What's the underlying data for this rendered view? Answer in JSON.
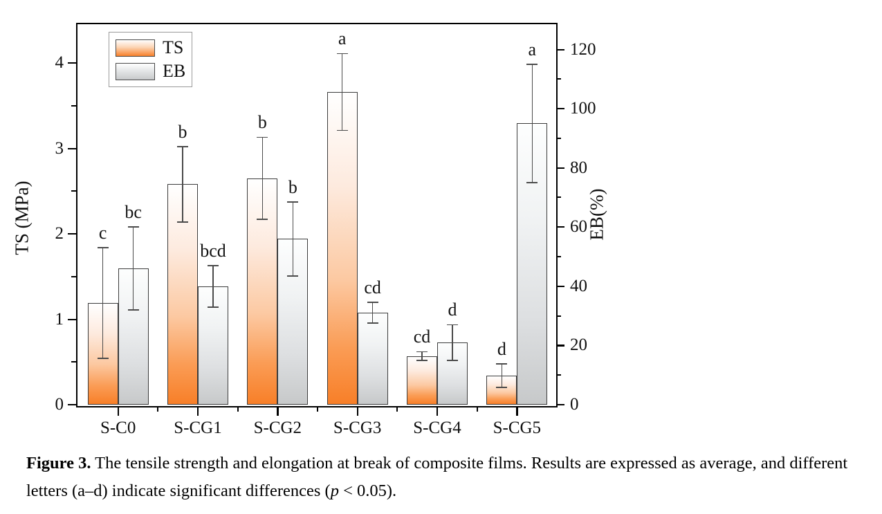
{
  "figure": {
    "caption": {
      "label": "Figure 3.",
      "text_before_p": " The tensile strength and elongation at break of composite films. Results are expressed as average, and different letters (a–d) indicate significant differences (",
      "p_symbol": "p",
      "text_after_p": " < 0.05)."
    }
  },
  "chart_data": {
    "type": "bar",
    "title": "",
    "categories": [
      "S-C0",
      "S-CG1",
      "S-CG2",
      "S-CG3",
      "S-CG4",
      "S-CG5"
    ],
    "series": [
      {
        "name": "TS",
        "axis": "left",
        "unit": "MPa",
        "values": [
          1.19,
          2.58,
          2.65,
          3.66,
          0.57,
          0.34
        ],
        "errors": [
          0.65,
          0.44,
          0.48,
          0.45,
          0.05,
          0.14
        ],
        "letters": [
          "c",
          "b",
          "b",
          "a",
          "cd",
          "d"
        ],
        "gradient_top": "#ffffff",
        "gradient_bottom": "#f87f28"
      },
      {
        "name": "EB",
        "axis": "right",
        "unit": "%",
        "values": [
          46,
          40,
          56,
          31,
          21,
          95
        ],
        "errors": [
          14,
          7,
          12.5,
          3.5,
          6,
          20
        ],
        "letters": [
          "bc",
          "bcd",
          "b",
          "cd",
          "d",
          "a"
        ],
        "gradient_top": "#ffffff",
        "gradient_bottom": "#c7c9ca"
      }
    ],
    "left_axis": {
      "label": "TS (MPa)",
      "ticks": [
        0,
        1,
        2,
        3,
        4
      ],
      "minor_ticks": [
        0.5,
        1.5,
        2.5,
        3.5
      ],
      "min": 0,
      "max": 4.47
    },
    "right_axis": {
      "label": "EB(%)",
      "ticks": [
        0,
        20,
        40,
        60,
        80,
        100,
        120
      ],
      "minor_ticks": [
        10,
        30,
        50,
        70,
        90,
        110
      ],
      "min": 0,
      "max": 129
    },
    "legend": {
      "position": "top-left"
    },
    "grid": false,
    "error_bars": true
  },
  "colors": {
    "ts_orange": "#f87f28",
    "eb_gray": "#c7c9ca",
    "bar_border": "#3b3b3b",
    "axis": "#000000",
    "error_bar": "#4a4a4a",
    "text": "#111111",
    "background": "#ffffff"
  }
}
